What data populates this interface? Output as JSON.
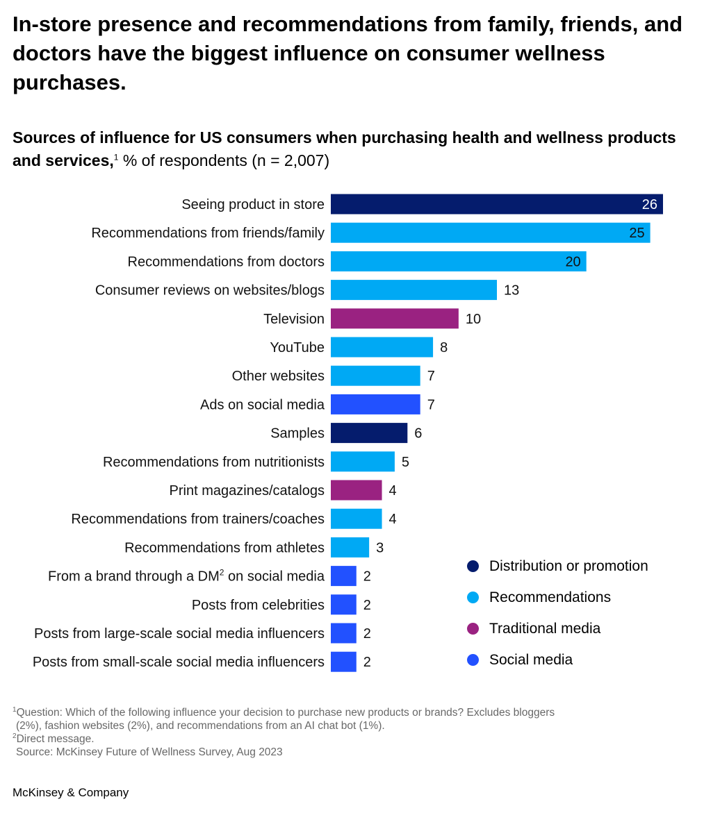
{
  "title": "In-store presence and recommendations from family, friends, and doctors have the biggest influence on consumer wellness purchases.",
  "subtitle": {
    "bold": "Sources of influence for US consumers when purchasing health and wellness products and services,",
    "sup": "1",
    "rest": " % of respondents (n = 2,007)"
  },
  "colors": {
    "distribution": "#051c6d",
    "recommendations": "#00a9f4",
    "traditional": "#9a2281",
    "social": "#2251ff"
  },
  "chart_data": {
    "type": "bar",
    "orientation": "horizontal",
    "xlim": [
      0,
      26
    ],
    "categories": [
      "Seeing product in store",
      "Recommendations from friends/family",
      "Recommendations from doctors",
      "Consumer reviews on websites/blogs",
      "Television",
      "YouTube",
      "Other websites",
      "Ads on social media",
      "Samples",
      "Recommendations from nutritionists",
      "Print magazines/catalogs",
      "Recommendations from trainers/coaches",
      "Recommendations from athletes",
      "From a brand through a DM",
      "Posts from celebrities",
      "Posts from large-scale social media influencers",
      "Posts from small-scale social media influencers"
    ],
    "category_suffix": {
      "13": {
        "sup": "2",
        "after": " on social media"
      }
    },
    "values": [
      26,
      25,
      20,
      13,
      10,
      8,
      7,
      7,
      6,
      5,
      4,
      4,
      3,
      2,
      2,
      2,
      2
    ],
    "groups": [
      "distribution",
      "recommendations",
      "recommendations",
      "recommendations",
      "traditional",
      "recommendations",
      "recommendations",
      "social",
      "distribution",
      "recommendations",
      "traditional",
      "recommendations",
      "recommendations",
      "social",
      "social",
      "social",
      "social"
    ],
    "inside_labels": [
      0,
      1,
      2
    ]
  },
  "legend": [
    {
      "key": "distribution",
      "label": "Distribution or promotion"
    },
    {
      "key": "recommendations",
      "label": "Recommendations"
    },
    {
      "key": "traditional",
      "label": "Traditional media"
    },
    {
      "key": "social",
      "label": "Social media"
    }
  ],
  "footnotes": {
    "f1_sup": "1",
    "f1_line1": "Question: Which of the following influence your decision to purchase new products or brands? Excludes bloggers",
    "f1_line2": "(2%), fashion websites (2%), and recommendations from an AI chat bot (1%).",
    "f2_sup": "2",
    "f2": "Direct message.",
    "source": "Source: McKinsey Future of Wellness Survey, Aug 2023"
  },
  "brand": "McKinsey & Company"
}
